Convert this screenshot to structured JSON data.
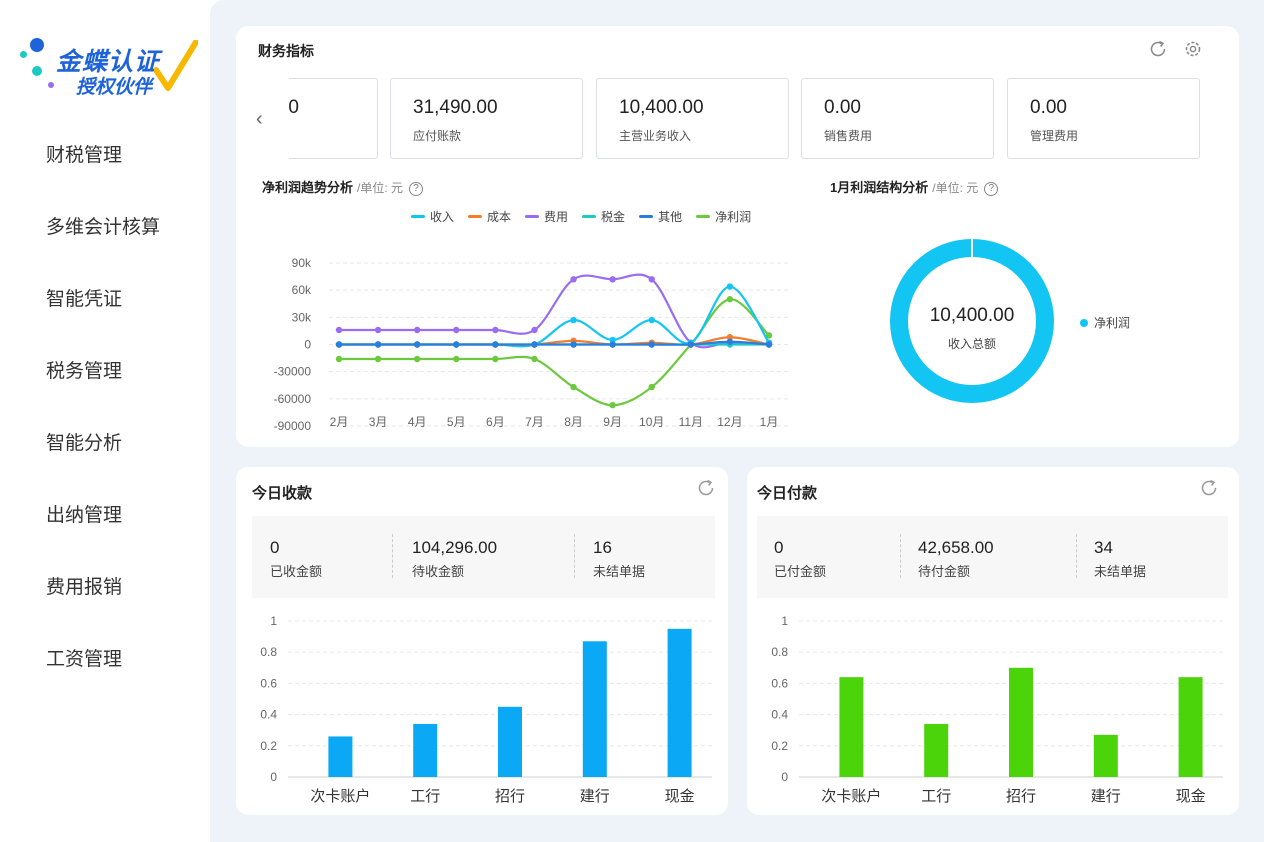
{
  "logo": {
    "line1": "金蝶认证",
    "line2": "授权伙伴"
  },
  "nav": [
    {
      "label": "财税管理"
    },
    {
      "label": "多维会计核算"
    },
    {
      "label": "智能凭证"
    },
    {
      "label": "税务管理"
    },
    {
      "label": "智能分析"
    },
    {
      "label": "出纳管理"
    },
    {
      "label": "费用报销"
    },
    {
      "label": "工资管理"
    }
  ],
  "finance": {
    "title": "财务指标",
    "kpis": [
      {
        "value": "0",
        "label": ""
      },
      {
        "value": "31,490.00",
        "label": "应付账款"
      },
      {
        "value": "10,400.00",
        "label": "主营业务收入"
      },
      {
        "value": "0.00",
        "label": "销售费用"
      },
      {
        "value": "0.00",
        "label": "管理费用"
      }
    ],
    "trend_title": "净利润趋势分析",
    "trend_unit": "/单位: 元",
    "structure_title": "1月利润结构分析",
    "structure_unit": "/单位: 元",
    "donut": {
      "value": "10,400.00",
      "label": "收入总额",
      "legend": "净利润",
      "color": "#12c5f2"
    }
  },
  "receipts": {
    "title": "今日收款",
    "stats": [
      {
        "value": "0",
        "label": "已收金额"
      },
      {
        "value": "104,296.00",
        "label": "待收金额"
      },
      {
        "value": "16",
        "label": "未结单据"
      }
    ]
  },
  "payments": {
    "title": "今日付款",
    "stats": [
      {
        "value": "0",
        "label": "已付金额"
      },
      {
        "value": "42,658.00",
        "label": "待付金额"
      },
      {
        "value": "34",
        "label": "未结单据"
      }
    ]
  },
  "chart_data": [
    {
      "type": "line",
      "title": "净利润趋势分析",
      "x": [
        "2月",
        "3月",
        "4月",
        "5月",
        "6月",
        "7月",
        "8月",
        "9月",
        "10月",
        "11月",
        "12月",
        "1月"
      ],
      "ylim": [
        -90000,
        90000
      ],
      "yticks": [
        "90k",
        "60k",
        "30k",
        "0",
        "-30000",
        "-60000",
        "-90000"
      ],
      "ytick_values": [
        90000,
        60000,
        30000,
        0,
        -30000,
        -60000,
        -90000
      ],
      "grid": true,
      "legend_position": "top",
      "series": [
        {
          "name": "收入",
          "color": "#12c5f2",
          "values": [
            0,
            0,
            0,
            0,
            0,
            0,
            27000,
            5000,
            27000,
            2000,
            64000,
            2000
          ]
        },
        {
          "name": "成本",
          "color": "#f57c2a",
          "values": [
            0,
            0,
            0,
            0,
            0,
            0,
            4000,
            0,
            2000,
            0,
            8000,
            0
          ]
        },
        {
          "name": "费用",
          "color": "#9a6cf2",
          "values": [
            16000,
            16000,
            16000,
            16000,
            16000,
            16000,
            72000,
            72000,
            72000,
            2000,
            2000,
            0
          ]
        },
        {
          "name": "税金",
          "color": "#1ec9c4",
          "values": [
            0,
            0,
            0,
            0,
            0,
            0,
            0,
            0,
            0,
            0,
            0,
            0
          ]
        },
        {
          "name": "其他",
          "color": "#2a7ee0",
          "values": [
            0,
            0,
            0,
            0,
            0,
            0,
            0,
            0,
            0,
            0,
            3000,
            0
          ]
        },
        {
          "name": "净利润",
          "color": "#6cc83c",
          "values": [
            -16000,
            -16000,
            -16000,
            -16000,
            -16000,
            -16000,
            -47000,
            -67000,
            -47000,
            0,
            50000,
            10000
          ]
        }
      ]
    },
    {
      "type": "pie",
      "title": "1月利润结构分析",
      "categories": [
        "净利润"
      ],
      "values": [
        10400
      ]
    },
    {
      "type": "bar",
      "title": "今日收款",
      "categories": [
        "次卡账户",
        "工行",
        "招行",
        "建行",
        "现金"
      ],
      "values": [
        0.26,
        0.34,
        0.45,
        0.87,
        0.95
      ],
      "ylim": [
        0,
        1
      ],
      "yticks": [
        "1",
        "0.8",
        "0.6",
        "0.4",
        "0.2",
        "0"
      ],
      "ytick_values": [
        1,
        0.8,
        0.6,
        0.4,
        0.2,
        0
      ],
      "color": "#0aa8f5"
    },
    {
      "type": "bar",
      "title": "今日付款",
      "categories": [
        "次卡账户",
        "工行",
        "招行",
        "建行",
        "现金"
      ],
      "values": [
        0.64,
        0.34,
        0.7,
        0.27,
        0.64
      ],
      "ylim": [
        0,
        1
      ],
      "yticks": [
        "1",
        "0.8",
        "0.6",
        "0.4",
        "0.2",
        "0"
      ],
      "ytick_values": [
        1,
        0.8,
        0.6,
        0.4,
        0.2,
        0
      ],
      "color": "#4cd40a"
    }
  ]
}
